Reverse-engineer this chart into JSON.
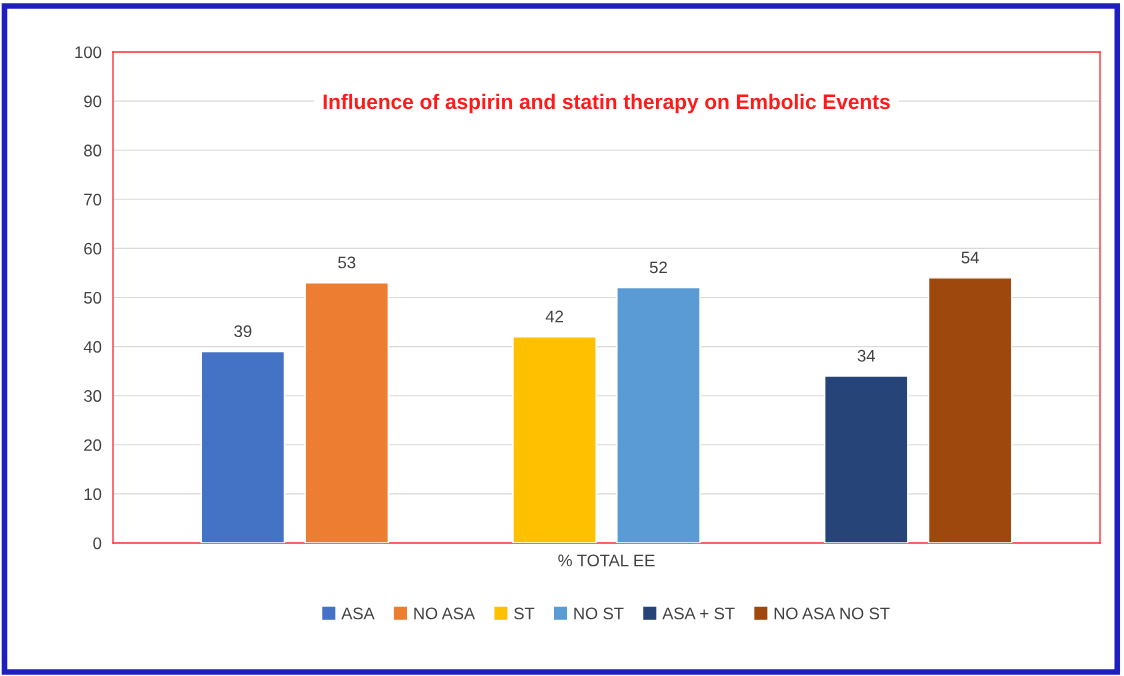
{
  "chart_data": {
    "type": "bar",
    "title": "Influence of aspirin and statin therapy on Embolic Events",
    "categories": [
      "% TOTAL EE"
    ],
    "series": [
      {
        "name": "ASA",
        "color": "#4472c4",
        "values": [
          39
        ]
      },
      {
        "name": "NO ASA",
        "color": "#ed7d31",
        "values": [
          53
        ]
      },
      {
        "name": "ST",
        "color": "#ffc000",
        "values": [
          42
        ]
      },
      {
        "name": "NO ST",
        "color": "#5b9bd5",
        "values": [
          52
        ]
      },
      {
        "name": "ASA + ST",
        "color": "#264478",
        "values": [
          34
        ]
      },
      {
        "name": "NO ASA NO ST",
        "color": "#9e480e",
        "values": [
          54
        ]
      }
    ],
    "ylim": [
      0,
      100
    ],
    "yticks": [
      0,
      10,
      20,
      30,
      40,
      50,
      60,
      70,
      80,
      90,
      100
    ],
    "grid": "y",
    "legend": "bottom",
    "data_labels": true
  }
}
